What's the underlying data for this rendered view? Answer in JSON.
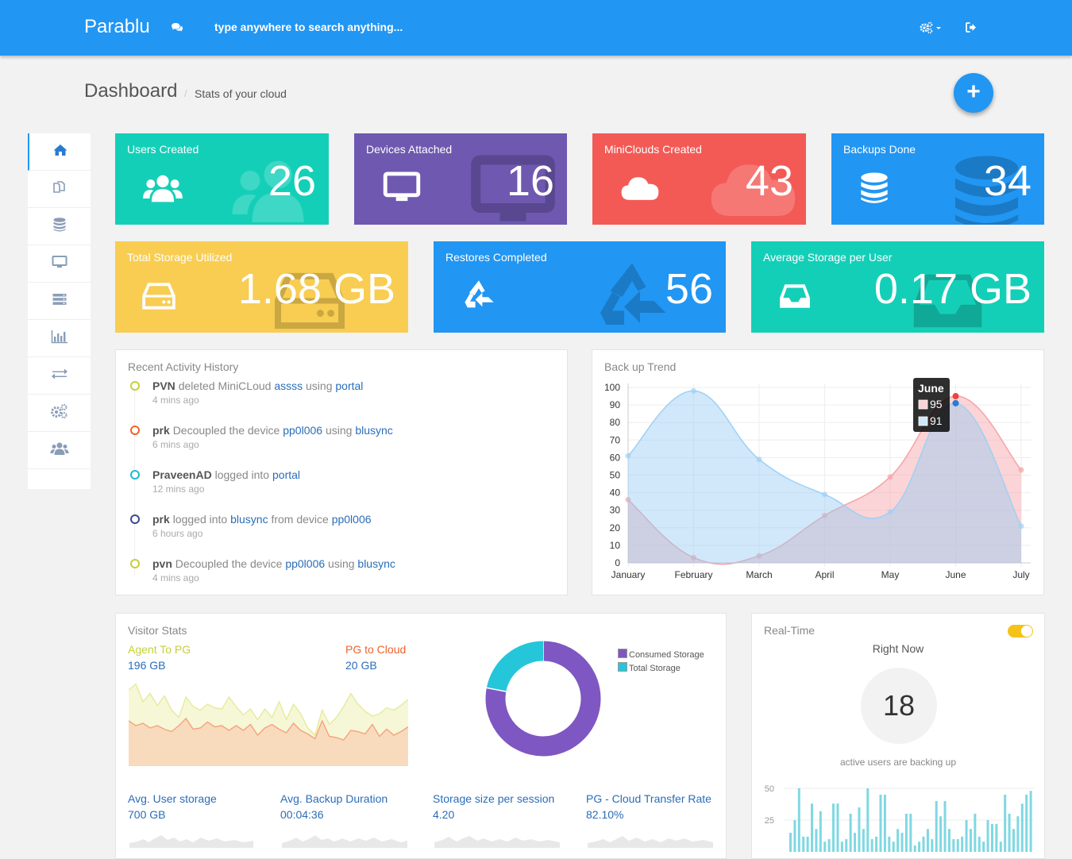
{
  "app": {
    "brand": "Parablu",
    "search_placeholder": "type anywhere to search anything..."
  },
  "header": {
    "title": "Dashboard",
    "separator": "/",
    "subtitle": "Stats of your cloud",
    "fab_label": "+"
  },
  "sidebar": {
    "items": [
      "home-icon",
      "copy-icon",
      "database-icon",
      "desktop-icon",
      "server-icon",
      "bar-chart-icon",
      "exchange-icon",
      "gears-icon",
      "users-icon"
    ],
    "active": 0
  },
  "tiles": [
    {
      "label": "Users Created",
      "value": "26",
      "color": "#14cfb8",
      "icon": "users-icon"
    },
    {
      "label": "Devices Attached",
      "value": "16",
      "color": "#6e58b0",
      "icon": "desktop-icon"
    },
    {
      "label": "MiniClouds Created",
      "value": "43",
      "color": "#f35a55",
      "icon": "cloud-icon"
    },
    {
      "label": "Backups Done",
      "value": "34",
      "color": "#2196f3",
      "icon": "database-icon"
    },
    {
      "label": "Total Storage Utilized",
      "value": "1.68 GB",
      "color": "#f8cd52",
      "icon": "hdd-icon"
    },
    {
      "label": "Restores Completed",
      "value": "56",
      "color": "#2196f3",
      "icon": "recycle-icon"
    },
    {
      "label": "Average Storage per User",
      "value": "0.17 GB",
      "color": "#14cfb8",
      "icon": "inbox-icon"
    }
  ],
  "activity": {
    "title": "Recent Activity History",
    "items": [
      {
        "user": "PVN",
        "text1": "deleted MiniCLoud",
        "obj": "assss",
        "text2": "using",
        "via": "portal",
        "text3": "",
        "extra": "",
        "time": "4 mins ago",
        "color": "#c6cf3a"
      },
      {
        "user": "prk",
        "text1": "Decoupled the device",
        "obj": "pp0l006",
        "text2": "using",
        "via": "blusync",
        "text3": "",
        "extra": "",
        "time": "6 mins ago",
        "color": "#f0622d"
      },
      {
        "user": "PraveenAD",
        "text1": "logged into",
        "obj": "portal",
        "text2": "",
        "via": "",
        "text3": "",
        "extra": "",
        "time": "12 mins ago",
        "color": "#20b8d0"
      },
      {
        "user": "prk",
        "text1": "logged into",
        "obj": "blusync",
        "text2": "from device",
        "via": "pp0l006",
        "text3": "",
        "extra": "",
        "time": "6 hours ago",
        "color": "#3a4a96"
      },
      {
        "user": "pvn",
        "text1": "Decoupled the device",
        "obj": "pp0l006",
        "text2": "using",
        "via": "blusync",
        "text3": "",
        "extra": "",
        "time": "4 mins ago",
        "color": "#c6cf3a"
      }
    ]
  },
  "chart_data": {
    "type": "area",
    "title": "Back up Trend",
    "categories": [
      "January",
      "February",
      "March",
      "April",
      "May",
      "June",
      "July"
    ],
    "ylim": [
      0,
      100
    ],
    "yticks": [
      0,
      10,
      20,
      30,
      40,
      50,
      60,
      70,
      80,
      90,
      100
    ],
    "series": [
      {
        "values": [
          36,
          3,
          4,
          27,
          49,
          95,
          53
        ],
        "color": "#f5a3a8"
      },
      {
        "values": [
          61,
          98,
          59,
          39,
          29,
          91,
          21
        ],
        "color": "#9fd0f5"
      }
    ],
    "tooltip": {
      "title": "June",
      "values": [
        "95",
        "91"
      ]
    },
    "grid": true
  },
  "visitor": {
    "title": "Visitor Stats",
    "left_label": "Agent To PG",
    "left_value": "196 GB",
    "right_label": "PG to Cloud",
    "right_value": "20 GB",
    "agent_series": [
      64,
      69,
      54,
      61,
      51,
      59,
      47,
      41,
      58,
      50,
      47,
      52,
      49,
      48,
      58,
      50,
      43,
      48,
      39,
      48,
      41,
      54,
      39,
      52,
      44,
      32,
      26,
      47,
      35,
      41,
      50,
      61,
      52,
      46,
      42,
      44,
      49,
      47,
      51,
      56
    ],
    "cloud_series": [
      38,
      34,
      36,
      32,
      34,
      31,
      29,
      34,
      40,
      31,
      32,
      37,
      33,
      34,
      30,
      34,
      30,
      35,
      26,
      32,
      35,
      31,
      28,
      36,
      30,
      27,
      23,
      38,
      25,
      24,
      22,
      30,
      29,
      27,
      35,
      25,
      31,
      26,
      29,
      33
    ],
    "donut": {
      "legend": [
        "Consumed Storage",
        "Total Storage"
      ],
      "values": [
        78,
        22
      ],
      "colors": [
        "#7e57c2",
        "#26c6da"
      ]
    },
    "stats": [
      {
        "label": "Avg. User storage",
        "value": "700 GB"
      },
      {
        "label": "Avg. Backup Duration",
        "value": "00:04:36"
      },
      {
        "label": "Storage size per session",
        "value": "4.20"
      },
      {
        "label": "PG - Cloud Transfer Rate",
        "value": "82.10%"
      }
    ]
  },
  "realtime": {
    "title": "Real-Time",
    "heading": "Right Now",
    "count": "18",
    "caption": "active users are backing up",
    "yticks": [
      "50",
      "25"
    ],
    "bars": [
      15,
      25,
      50,
      12,
      12,
      38,
      18,
      32,
      8,
      10,
      38,
      38,
      8,
      10,
      30,
      15,
      35,
      18,
      50,
      10,
      12,
      45,
      45,
      12,
      8,
      18,
      15,
      30,
      30,
      5,
      8,
      12,
      18,
      10,
      40,
      28,
      40,
      18,
      10,
      10,
      12,
      25,
      18,
      30,
      12,
      8,
      25,
      22,
      22,
      8,
      45,
      30,
      18,
      28,
      38,
      45,
      48
    ]
  }
}
